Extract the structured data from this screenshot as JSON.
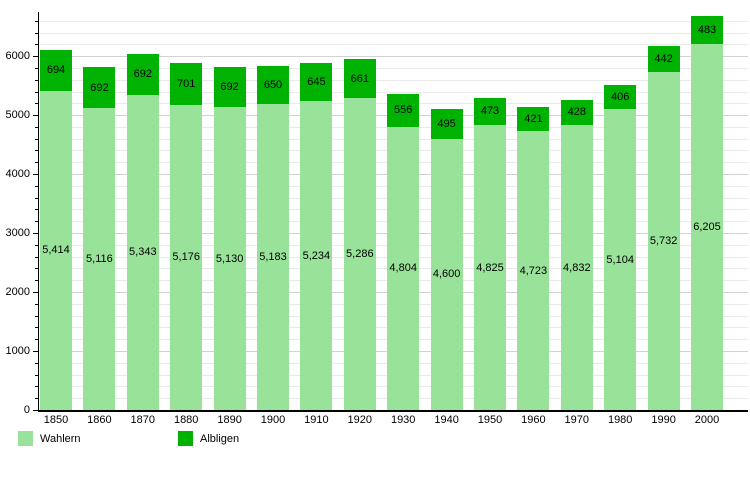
{
  "chart_data": {
    "type": "bar",
    "stacked": true,
    "title": "",
    "xlabel": "",
    "ylabel": "",
    "categories": [
      "1850",
      "1860",
      "1870",
      "1880",
      "1890",
      "1900",
      "1910",
      "1920",
      "1930",
      "1940",
      "1950",
      "1960",
      "1970",
      "1980",
      "1990",
      "2000"
    ],
    "series": [
      {
        "name": "Wahlern",
        "color": "#99e299",
        "values": [
          5414,
          5116,
          5343,
          5176,
          5130,
          5183,
          5234,
          5286,
          4804,
          4600,
          4825,
          4723,
          4832,
          5104,
          5732,
          6205
        ]
      },
      {
        "name": "Albligen",
        "color": "#00b303",
        "values": [
          694,
          692,
          692,
          701,
          692,
          650,
          645,
          661,
          556,
          495,
          473,
          421,
          428,
          406,
          442,
          483
        ]
      }
    ],
    "y_ticks": [
      0,
      1000,
      2000,
      3000,
      4000,
      5000,
      6000
    ],
    "minor_tick_step": 200,
    "ylim": [
      0,
      6730
    ],
    "grid": true,
    "legend_position": "bottom-left",
    "value_labels": "inside-segment-center"
  },
  "legend": {
    "entries": [
      {
        "label": "Wahlern",
        "color": "#99e299"
      },
      {
        "label": "Albligen",
        "color": "#00b303"
      }
    ]
  },
  "colors": {
    "background": "#ffffff",
    "axis": "#000000",
    "grid_minor": "#e9e9e9",
    "grid_major": "#d2d2d2",
    "text": "#000000"
  }
}
